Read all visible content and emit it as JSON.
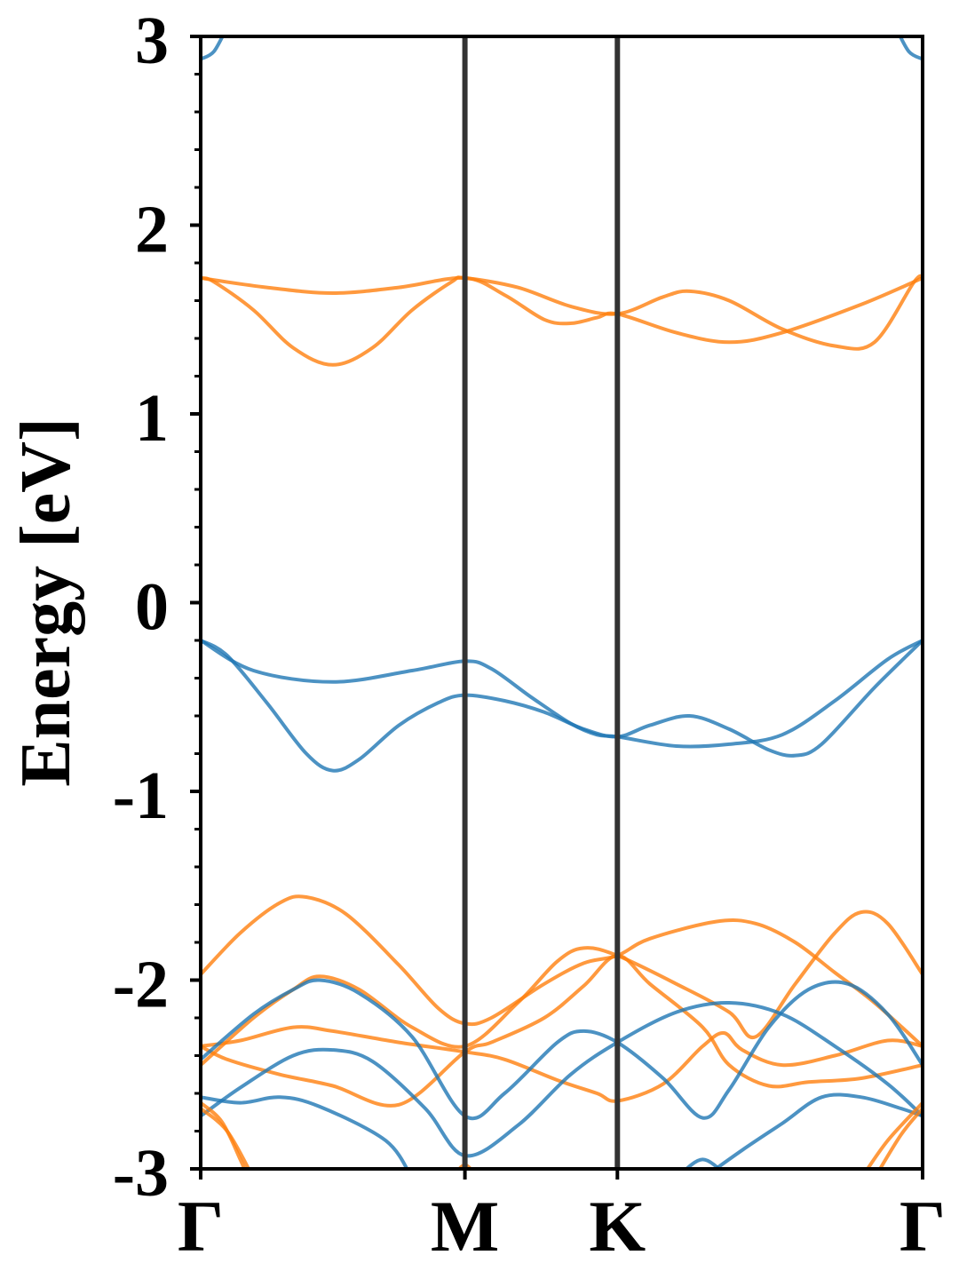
{
  "chart_data": {
    "type": "line",
    "title": "",
    "xlabel": "",
    "ylabel": "Energy [eV]",
    "ylim": [
      -3,
      3
    ],
    "yticks": [
      "-3",
      "-2",
      "-1",
      "0",
      "1",
      "2",
      "3"
    ],
    "xticks": [
      {
        "label": "Γ",
        "x": 0
      },
      {
        "label": "M",
        "x": 1
      },
      {
        "label": "K",
        "x": 1.577
      },
      {
        "label": "Γ",
        "x": 2.732
      }
    ],
    "grid": false,
    "legend": "none",
    "colors": {
      "spin_up": "#1f77b4",
      "spin_down": "#ff7f0e",
      "kpath_line": "#333333"
    },
    "series": [
      {
        "color": "#ff7f0e",
        "points": [
          [
            0,
            1.72
          ],
          [
            0.05,
            1.7
          ],
          [
            0.2,
            1.55
          ],
          [
            0.35,
            1.35
          ],
          [
            0.5,
            1.26
          ],
          [
            0.65,
            1.35
          ],
          [
            0.8,
            1.55
          ],
          [
            0.95,
            1.7
          ],
          [
            1,
            1.72
          ],
          [
            1.2,
            1.67
          ],
          [
            1.4,
            1.57
          ],
          [
            1.577,
            1.53
          ],
          [
            1.75,
            1.62
          ],
          [
            1.85,
            1.65
          ],
          [
            2.0,
            1.6
          ],
          [
            2.2,
            1.45
          ],
          [
            2.4,
            1.36
          ],
          [
            2.55,
            1.38
          ],
          [
            2.7,
            1.7
          ],
          [
            2.732,
            1.72
          ]
        ]
      },
      {
        "color": "#ff7f0e",
        "points": [
          [
            0,
            1.72
          ],
          [
            0.25,
            1.67
          ],
          [
            0.5,
            1.64
          ],
          [
            0.75,
            1.67
          ],
          [
            1,
            1.72
          ],
          [
            1.15,
            1.63
          ],
          [
            1.3,
            1.5
          ],
          [
            1.4,
            1.48
          ],
          [
            1.5,
            1.51
          ],
          [
            1.577,
            1.53
          ],
          [
            1.8,
            1.43
          ],
          [
            2.0,
            1.38
          ],
          [
            2.2,
            1.43
          ],
          [
            2.5,
            1.58
          ],
          [
            2.732,
            1.72
          ]
        ]
      },
      {
        "color": "#1f77b4",
        "points": [
          [
            0,
            -0.2
          ],
          [
            0.1,
            -0.28
          ],
          [
            0.25,
            -0.53
          ],
          [
            0.4,
            -0.8
          ],
          [
            0.5,
            -0.89
          ],
          [
            0.6,
            -0.83
          ],
          [
            0.75,
            -0.65
          ],
          [
            0.9,
            -0.53
          ],
          [
            1,
            -0.49
          ],
          [
            1.15,
            -0.52
          ],
          [
            1.3,
            -0.58
          ],
          [
            1.45,
            -0.67
          ],
          [
            1.577,
            -0.71
          ],
          [
            1.7,
            -0.65
          ],
          [
            1.85,
            -0.6
          ],
          [
            2.0,
            -0.67
          ],
          [
            2.15,
            -0.78
          ],
          [
            2.25,
            -0.81
          ],
          [
            2.35,
            -0.75
          ],
          [
            2.55,
            -0.45
          ],
          [
            2.732,
            -0.2
          ]
        ]
      },
      {
        "color": "#1f77b4",
        "points": [
          [
            0,
            -0.2
          ],
          [
            0.2,
            -0.36
          ],
          [
            0.5,
            -0.42
          ],
          [
            0.8,
            -0.36
          ],
          [
            1,
            -0.31
          ],
          [
            1.1,
            -0.35
          ],
          [
            1.25,
            -0.5
          ],
          [
            1.4,
            -0.64
          ],
          [
            1.5,
            -0.7
          ],
          [
            1.577,
            -0.71
          ],
          [
            1.8,
            -0.76
          ],
          [
            2.0,
            -0.75
          ],
          [
            2.2,
            -0.7
          ],
          [
            2.4,
            -0.52
          ],
          [
            2.6,
            -0.3
          ],
          [
            2.732,
            -0.2
          ]
        ]
      },
      {
        "color": "#1f77b4",
        "points": [
          [
            0,
            2.88
          ],
          [
            0.05,
            2.92
          ],
          [
            0.1,
            3.05
          ]
        ]
      },
      {
        "color": "#1f77b4",
        "points": [
          [
            2.63,
            3.05
          ],
          [
            2.68,
            2.92
          ],
          [
            2.732,
            2.88
          ]
        ]
      },
      {
        "color": "#ff7f0e",
        "points": [
          [
            0,
            -1.97
          ],
          [
            0.15,
            -1.75
          ],
          [
            0.3,
            -1.59
          ],
          [
            0.4,
            -1.56
          ],
          [
            0.55,
            -1.65
          ],
          [
            0.75,
            -1.92
          ],
          [
            0.9,
            -2.15
          ],
          [
            1,
            -2.23
          ],
          [
            1.1,
            -2.2
          ],
          [
            1.3,
            -2.02
          ],
          [
            1.45,
            -1.91
          ],
          [
            1.577,
            -1.87
          ],
          [
            1.7,
            -1.78
          ],
          [
            1.95,
            -1.69
          ],
          [
            2.1,
            -1.7
          ],
          [
            2.25,
            -1.8
          ],
          [
            2.4,
            -1.96
          ],
          [
            2.55,
            -2.12
          ],
          [
            2.732,
            -2.35
          ]
        ]
      },
      {
        "color": "#ff7f0e",
        "points": [
          [
            0,
            -2.45
          ],
          [
            0.2,
            -2.2
          ],
          [
            0.35,
            -2.05
          ],
          [
            0.45,
            -1.98
          ],
          [
            0.6,
            -2.05
          ],
          [
            0.8,
            -2.25
          ],
          [
            1,
            -2.35
          ],
          [
            1.2,
            -2.12
          ],
          [
            1.35,
            -1.9
          ],
          [
            1.45,
            -1.83
          ],
          [
            1.577,
            -1.87
          ],
          [
            1.8,
            -2.02
          ],
          [
            2.0,
            -2.17
          ],
          [
            2.1,
            -2.3
          ],
          [
            2.25,
            -2.02
          ],
          [
            2.4,
            -1.75
          ],
          [
            2.5,
            -1.64
          ],
          [
            2.6,
            -1.7
          ],
          [
            2.732,
            -1.97
          ]
        ]
      },
      {
        "color": "#ff7f0e",
        "points": [
          [
            0,
            -2.35
          ],
          [
            0.15,
            -2.32
          ],
          [
            0.35,
            -2.25
          ],
          [
            0.5,
            -2.27
          ],
          [
            0.75,
            -2.33
          ],
          [
            1,
            -2.38
          ],
          [
            1.15,
            -2.42
          ],
          [
            1.35,
            -2.53
          ],
          [
            1.5,
            -2.6
          ],
          [
            1.577,
            -2.64
          ],
          [
            1.75,
            -2.55
          ],
          [
            1.9,
            -2.35
          ],
          [
            1.98,
            -2.28
          ],
          [
            2.05,
            -2.37
          ],
          [
            2.2,
            -2.45
          ],
          [
            2.4,
            -2.4
          ],
          [
            2.6,
            -2.32
          ],
          [
            2.732,
            -2.35
          ]
        ]
      },
      {
        "color": "#ff7f0e",
        "points": [
          [
            0,
            -2.35
          ],
          [
            0.1,
            -2.42
          ],
          [
            0.3,
            -2.5
          ],
          [
            0.5,
            -2.56
          ],
          [
            0.75,
            -2.66
          ],
          [
            1,
            -2.38
          ],
          [
            1.1,
            -2.33
          ],
          [
            1.3,
            -2.2
          ],
          [
            1.45,
            -2.03
          ],
          [
            1.577,
            -1.87
          ],
          [
            1.7,
            -2.02
          ],
          [
            1.9,
            -2.25
          ],
          [
            2.0,
            -2.45
          ],
          [
            2.15,
            -2.56
          ],
          [
            2.3,
            -2.54
          ],
          [
            2.5,
            -2.52
          ],
          [
            2.732,
            -2.45
          ]
        ]
      },
      {
        "color": "#1f77b4",
        "points": [
          [
            0,
            -2.42
          ],
          [
            0.2,
            -2.18
          ],
          [
            0.35,
            -2.05
          ],
          [
            0.45,
            -2.0
          ],
          [
            0.6,
            -2.07
          ],
          [
            0.8,
            -2.3
          ],
          [
            1,
            -2.72
          ],
          [
            1.15,
            -2.6
          ],
          [
            1.35,
            -2.33
          ],
          [
            1.45,
            -2.27
          ],
          [
            1.577,
            -2.33
          ],
          [
            1.75,
            -2.52
          ],
          [
            1.9,
            -2.73
          ],
          [
            2.0,
            -2.58
          ],
          [
            2.15,
            -2.25
          ],
          [
            2.3,
            -2.05
          ],
          [
            2.45,
            -2.02
          ],
          [
            2.6,
            -2.18
          ],
          [
            2.732,
            -2.45
          ]
        ]
      },
      {
        "color": "#1f77b4",
        "points": [
          [
            0,
            -2.72
          ],
          [
            0.15,
            -2.57
          ],
          [
            0.35,
            -2.4
          ],
          [
            0.5,
            -2.37
          ],
          [
            0.65,
            -2.43
          ],
          [
            0.85,
            -2.68
          ],
          [
            1,
            -2.93
          ],
          [
            1.2,
            -2.77
          ],
          [
            1.4,
            -2.5
          ],
          [
            1.577,
            -2.33
          ],
          [
            1.8,
            -2.17
          ],
          [
            2.0,
            -2.12
          ],
          [
            2.2,
            -2.18
          ],
          [
            2.4,
            -2.35
          ],
          [
            2.6,
            -2.55
          ],
          [
            2.732,
            -2.72
          ]
        ]
      },
      {
        "color": "#1f77b4",
        "points": [
          [
            0,
            -2.62
          ],
          [
            0.15,
            -2.65
          ],
          [
            0.3,
            -2.62
          ],
          [
            0.45,
            -2.67
          ],
          [
            0.7,
            -2.85
          ],
          [
            0.8,
            -3.05
          ]
        ]
      },
      {
        "color": "#1f77b4",
        "points": [
          [
            1.9,
            -3.05
          ],
          [
            2.05,
            -2.9
          ],
          [
            2.2,
            -2.76
          ],
          [
            2.35,
            -2.62
          ],
          [
            2.5,
            -2.62
          ],
          [
            2.65,
            -2.68
          ],
          [
            2.732,
            -2.72
          ]
        ]
      },
      {
        "color": "#1f77b4",
        "points": [
          [
            1.8,
            -3.05
          ],
          [
            1.9,
            -2.95
          ],
          [
            2.0,
            -3.05
          ]
        ]
      },
      {
        "color": "#ff7f0e",
        "points": [
          [
            0,
            -2.65
          ],
          [
            0.08,
            -2.75
          ],
          [
            0.15,
            -2.95
          ],
          [
            0.18,
            -3.05
          ]
        ]
      },
      {
        "color": "#ff7f0e",
        "points": [
          [
            0,
            -2.68
          ],
          [
            0.1,
            -2.8
          ],
          [
            0.2,
            -3.05
          ]
        ]
      },
      {
        "color": "#ff7f0e",
        "points": [
          [
            0.95,
            -3.05
          ],
          [
            1,
            -2.98
          ],
          [
            1.05,
            -3.05
          ]
        ]
      },
      {
        "color": "#ff7f0e",
        "points": [
          [
            2.5,
            -3.05
          ],
          [
            2.6,
            -2.85
          ],
          [
            2.732,
            -2.65
          ]
        ]
      },
      {
        "color": "#ff7f0e",
        "points": [
          [
            2.55,
            -3.05
          ],
          [
            2.65,
            -2.82
          ],
          [
            2.732,
            -2.68
          ]
        ]
      }
    ]
  }
}
